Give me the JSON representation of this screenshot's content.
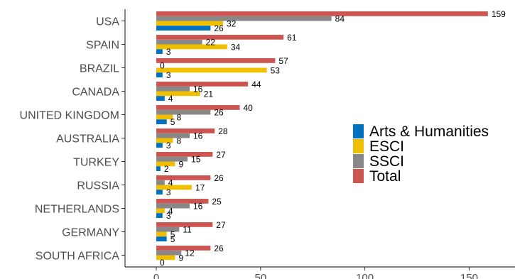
{
  "chart_data": {
    "type": "bar",
    "orientation": "horizontal",
    "categories": [
      "USA",
      "SPAIN",
      "BRAZIL",
      "CANADA",
      "UNITED KINGDOM",
      "AUSTRALIA",
      "TURKEY",
      "RUSSIA",
      "NETHERLANDS",
      "GERMANY",
      "SOUTH AFRICA"
    ],
    "series": [
      {
        "name": "Total",
        "color": "#cd5450",
        "values": [
          159,
          61,
          57,
          44,
          40,
          28,
          27,
          26,
          25,
          27,
          26
        ]
      },
      {
        "name": "SSCI",
        "color": "#888888",
        "values": [
          84,
          22,
          0,
          16,
          26,
          16,
          15,
          4,
          16,
          11,
          12
        ]
      },
      {
        "name": "ESCI",
        "color": "#f0bf00",
        "values": [
          32,
          34,
          53,
          21,
          8,
          8,
          9,
          17,
          4,
          5,
          9
        ]
      },
      {
        "name": "Arts & Humanities",
        "color": "#0070c0",
        "values": [
          26,
          3,
          3,
          4,
          5,
          3,
          2,
          3,
          3,
          5,
          0
        ]
      }
    ],
    "legend_order": [
      "Arts & Humanities",
      "ESCI",
      "SSCI",
      "Total"
    ],
    "xticks": [
      0,
      50,
      100,
      150
    ],
    "xlim": [
      -15,
      172
    ],
    "title": "",
    "xlabel": "",
    "ylabel": "",
    "grid": false,
    "legend_position": "right"
  }
}
